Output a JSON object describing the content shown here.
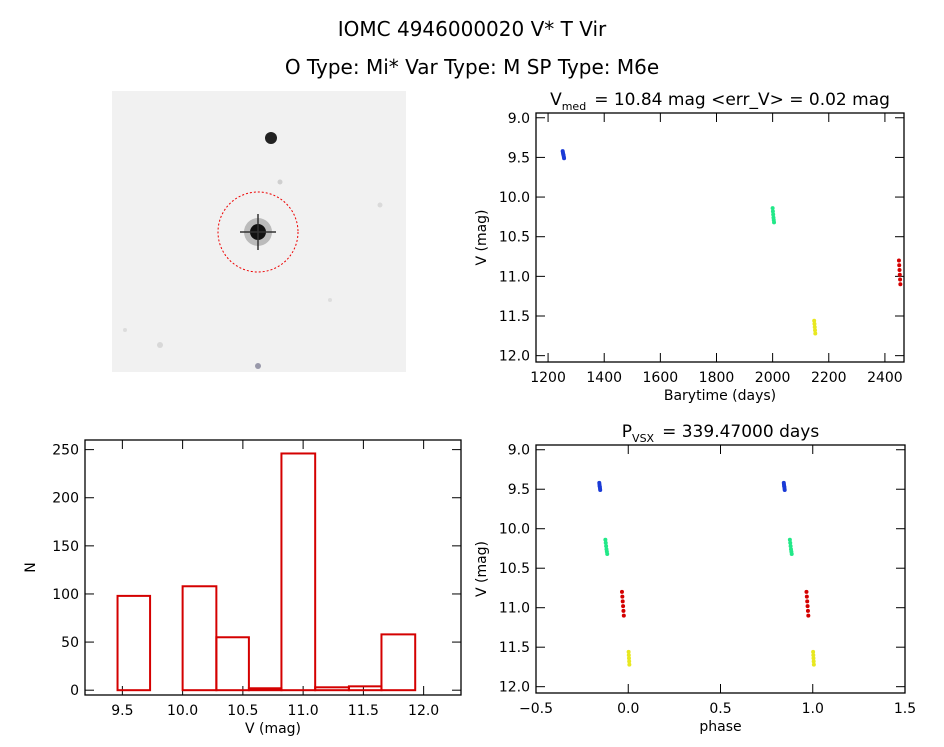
{
  "title": "IOMC 4946000020    V* T Vir",
  "subtitle": "O Type: Mi*  Var Type: M  SP Type: M6e",
  "chart_data": [
    {
      "type": "scatter",
      "title": {
        "main": "V",
        "sub": "med",
        "rest": "= 10.84 mag <err_V> = 0.02 mag"
      },
      "xlabel": "Barytime (days)",
      "ylabel": "V (mag)",
      "xlim": [
        1157,
        2468
      ],
      "xticks": [
        1200,
        1400,
        1600,
        1800,
        2000,
        2200,
        2400
      ],
      "ylim": [
        12.08,
        8.94
      ],
      "yticks": [
        {
          "value": 9,
          "label": "9.0"
        },
        9.5,
        {
          "value": 10,
          "label": "10.0"
        },
        10.5,
        {
          "value": 11,
          "label": "11.0"
        },
        11.5,
        {
          "value": 12,
          "label": "12.0"
        }
      ],
      "series": [
        {
          "color": "#1a3ad6",
          "x": [
            1252,
            1253,
            1254,
            1255,
            1256,
            1257
          ],
          "values": [
            9.42,
            9.44,
            9.46,
            9.47,
            9.49,
            9.51
          ]
        },
        {
          "color": "#22e888",
          "x": [
            2000,
            2001,
            2002,
            2003,
            2004,
            2005
          ],
          "values": [
            10.14,
            10.18,
            10.22,
            10.26,
            10.29,
            10.32
          ]
        },
        {
          "color": "#e8e820",
          "x": [
            2148,
            2149,
            2150,
            2151,
            2152
          ],
          "values": [
            11.56,
            11.6,
            11.64,
            11.68,
            11.72
          ]
        },
        {
          "color": "#d40000",
          "x": [
            2450,
            2451,
            2452,
            2453,
            2454,
            2455
          ],
          "values": [
            10.8,
            10.86,
            10.92,
            10.98,
            11.04,
            11.1
          ]
        }
      ]
    },
    {
      "type": "histogram",
      "xlabel": "V (mag)",
      "ylabel": "N",
      "color": "#d40000",
      "xlim": [
        9.19,
        12.31
      ],
      "xticks": [
        9.5,
        {
          "value": 10,
          "label": "10.0"
        },
        10.5,
        {
          "value": 11,
          "label": "11.0"
        },
        11.5,
        {
          "value": 12,
          "label": "12.0"
        }
      ],
      "ylim": [
        -5,
        260
      ],
      "yticks": [
        0,
        50,
        100,
        150,
        200,
        250
      ],
      "bins": [
        9.46,
        9.73,
        10.0,
        10.28,
        10.55,
        10.82,
        11.1,
        11.38,
        11.65,
        11.93
      ],
      "counts": [
        98,
        0,
        108,
        55,
        2,
        246,
        3,
        4,
        58
      ]
    },
    {
      "type": "scatter",
      "title": {
        "main": "P",
        "sub": "VSX",
        "rest": "= 339.47000 days"
      },
      "xlabel": "phase",
      "ylabel": "V (mag)",
      "xlim": [
        -0.5,
        1.5
      ],
      "xticks": [
        {
          "value": -0.5,
          "label": "−0.5"
        },
        {
          "value": 0,
          "label": "0.0"
        },
        0.5,
        {
          "value": 1,
          "label": "1.0"
        },
        1.5
      ],
      "ylim": [
        12.08,
        8.94
      ],
      "yticks": [
        {
          "value": 9,
          "label": "9.0"
        },
        9.5,
        {
          "value": 10,
          "label": "10.0"
        },
        10.5,
        {
          "value": 11,
          "label": "11.0"
        },
        11.5,
        {
          "value": 12,
          "label": "12.0"
        }
      ],
      "series": [
        {
          "color": "#1a3ad6",
          "x": [
            -0.157,
            -0.156,
            -0.155,
            -0.154,
            -0.153,
            -0.152
          ],
          "values": [
            9.42,
            9.44,
            9.46,
            9.47,
            9.49,
            9.51
          ]
        },
        {
          "color": "#1a3ad6",
          "x": [
            0.843,
            0.844,
            0.845,
            0.846,
            0.847,
            0.848
          ],
          "values": [
            9.42,
            9.44,
            9.46,
            9.47,
            9.49,
            9.51
          ]
        },
        {
          "color": "#22e888",
          "x": [
            -0.124,
            -0.122,
            -0.12,
            -0.118,
            -0.116,
            -0.114
          ],
          "values": [
            10.14,
            10.18,
            10.22,
            10.26,
            10.29,
            10.32
          ]
        },
        {
          "color": "#22e888",
          "x": [
            0.876,
            0.878,
            0.88,
            0.882,
            0.884,
            0.886
          ],
          "values": [
            10.14,
            10.18,
            10.22,
            10.26,
            10.29,
            10.32
          ]
        },
        {
          "color": "#e8e820",
          "x": [
            0.002,
            0.003,
            0.004,
            0.005,
            0.006
          ],
          "values": [
            11.56,
            11.6,
            11.64,
            11.68,
            11.72
          ]
        },
        {
          "color": "#e8e820",
          "x": [
            1.002,
            1.003,
            1.004,
            1.005,
            1.006
          ],
          "values": [
            11.56,
            11.6,
            11.64,
            11.68,
            11.72
          ]
        },
        {
          "color": "#d40000",
          "x": [
            -0.034,
            -0.032,
            -0.03,
            -0.028,
            -0.026,
            -0.024
          ],
          "values": [
            10.8,
            10.86,
            10.92,
            10.98,
            11.04,
            11.1
          ]
        },
        {
          "color": "#d40000",
          "x": [
            0.966,
            0.968,
            0.97,
            0.972,
            0.974,
            0.976
          ],
          "values": [
            10.8,
            10.86,
            10.92,
            10.98,
            11.04,
            11.1
          ]
        }
      ]
    }
  ]
}
